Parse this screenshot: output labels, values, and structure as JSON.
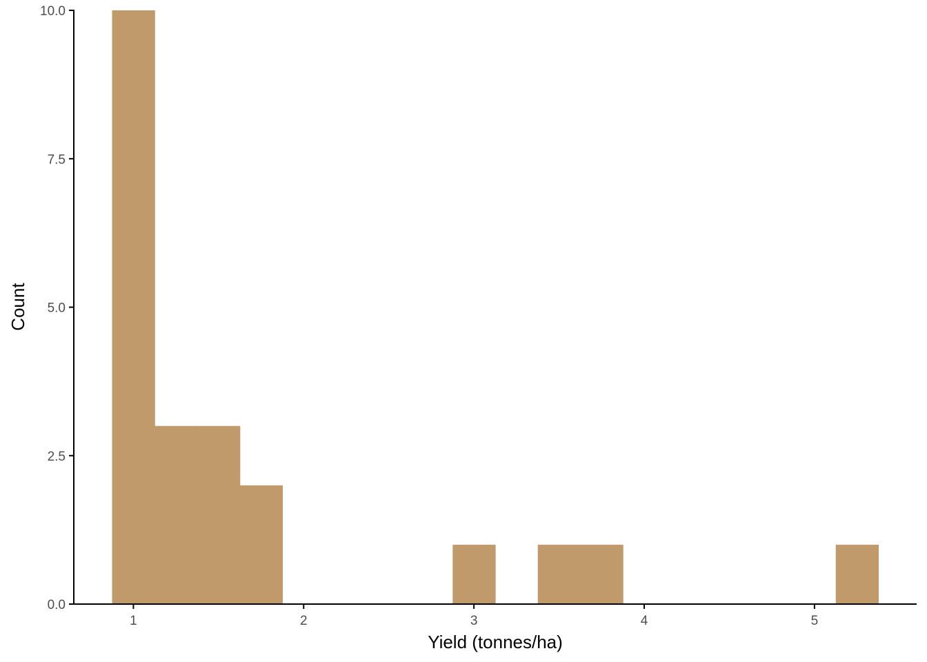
{
  "chart_data": {
    "type": "bar",
    "subtype": "histogram",
    "title": "",
    "xlabel": "Yield (tonnes/ha)",
    "ylabel": "Count",
    "bins": [
      {
        "x0": 0.875,
        "x1": 1.125,
        "count": 10
      },
      {
        "x0": 1.125,
        "x1": 1.375,
        "count": 3
      },
      {
        "x0": 1.375,
        "x1": 1.625,
        "count": 3
      },
      {
        "x0": 1.625,
        "x1": 1.875,
        "count": 2
      },
      {
        "x0": 2.875,
        "x1": 3.125,
        "count": 1
      },
      {
        "x0": 3.375,
        "x1": 3.625,
        "count": 1
      },
      {
        "x0": 3.625,
        "x1": 3.875,
        "count": 1
      },
      {
        "x0": 5.125,
        "x1": 5.375,
        "count": 1
      }
    ],
    "x_ticks": [
      "1",
      "2",
      "3",
      "4",
      "5"
    ],
    "x_tick_values": [
      1,
      2,
      3,
      4,
      5
    ],
    "y_ticks": [
      "0.0",
      "2.5",
      "5.0",
      "7.5",
      "10.0"
    ],
    "y_tick_values": [
      0,
      2.5,
      5,
      7.5,
      10
    ],
    "xlim": [
      0.65,
      5.6
    ],
    "ylim": [
      0,
      10
    ],
    "bar_color": "#C19A6B",
    "grid": false,
    "legend": "none"
  }
}
